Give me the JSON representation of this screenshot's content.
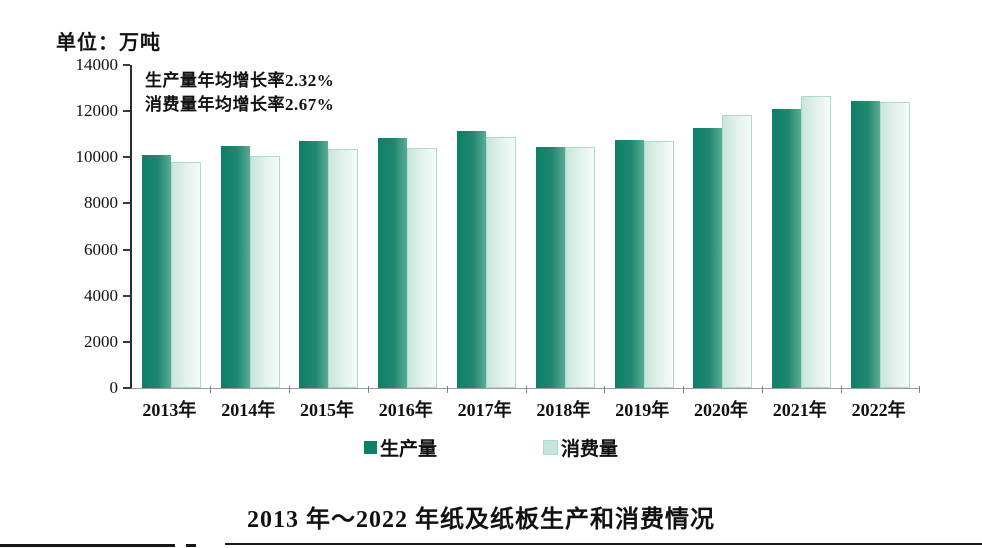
{
  "unit_label": "单位：万吨",
  "caption": "2013 年～2022 年纸及纸板生产和消费情况",
  "colors": {
    "production_dark": "#0E7F69",
    "production_mid": "#1E876F",
    "production_light": "#5BAB95",
    "consumption_dark": "#C7E6DB",
    "consumption_mid": "#DFF1EA",
    "consumption_light": "#F6FBF8",
    "consumption_border": "#AEDACB",
    "axis_line": "#2e2e2e",
    "baseline": "#9b9b9b"
  },
  "chart_data": {
    "type": "bar",
    "title": "2013 年～2022 年纸及纸板生产和消费情况",
    "unit": "万吨",
    "categories": [
      "2013年",
      "2014年",
      "2015年",
      "2016年",
      "2017年",
      "2018年",
      "2019年",
      "2020年",
      "2021年",
      "2022年"
    ],
    "series": [
      {
        "name": "生产量",
        "values": [
          10110,
          10470,
          10710,
          10855,
          11130,
          10435,
          10765,
          11260,
          12105,
          12425
        ]
      },
      {
        "name": "消费量",
        "values": [
          9782,
          10071,
          10352,
          10419,
          10897,
          10439,
          10704,
          11827,
          12648,
          12403
        ]
      }
    ],
    "ylim": [
      0,
      14000
    ],
    "ytick_interval": 2000,
    "grid": false,
    "legend_position": "bottom",
    "annotations": [
      "生产量年均增长率2.32%",
      "消费量年均增长率2.67%"
    ]
  }
}
